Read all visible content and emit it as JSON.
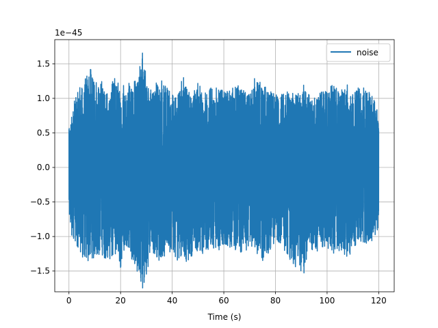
{
  "chart_data": {
    "type": "line",
    "title": "",
    "xlabel": "Time (s)",
    "ylabel": "",
    "y_offset_text": "1e−45",
    "xlim": [
      -5.5,
      126
    ],
    "ylim": [
      -1.8,
      1.85
    ],
    "x_ticks": [
      0,
      20,
      40,
      60,
      80,
      100,
      120
    ],
    "x_tick_labels": [
      "0",
      "20",
      "40",
      "60",
      "80",
      "100",
      "120"
    ],
    "y_ticks": [
      -1.5,
      -1.0,
      -0.5,
      0.0,
      0.5,
      1.0,
      1.5
    ],
    "y_tick_labels": [
      "−1.5",
      "−1.0",
      "−0.5",
      "0.0",
      "0.5",
      "1.0",
      "1.5"
    ],
    "grid": true,
    "legend_position": "top-right",
    "series": [
      {
        "name": "noise",
        "color": "#1f77b4",
        "x_range": [
          0,
          120
        ],
        "envelope_x": [
          0,
          2,
          4,
          6,
          7.5,
          10,
          12,
          15,
          18,
          20,
          22,
          24,
          27,
          28.5,
          30,
          32,
          35,
          38,
          40,
          42,
          44,
          46,
          48,
          50,
          52,
          55,
          58,
          60,
          62,
          65,
          68,
          70,
          72,
          75,
          78,
          80,
          82,
          85,
          88,
          90,
          91,
          93,
          95,
          98,
          100,
          102,
          105,
          108,
          110,
          112,
          115,
          118,
          120
        ],
        "envelope_upper": [
          0.55,
          0.95,
          1.15,
          1.2,
          1.55,
          1.2,
          1.3,
          1.05,
          1.35,
          1.1,
          1.25,
          1.2,
          1.3,
          1.8,
          1.25,
          1.1,
          1.3,
          1.15,
          1.05,
          1.0,
          1.35,
          1.1,
          1.05,
          1.25,
          1.05,
          1.15,
          1.15,
          1.1,
          1.1,
          1.2,
          1.1,
          1.05,
          1.3,
          1.2,
          1.1,
          1.05,
          1.05,
          1.1,
          1.05,
          1.1,
          1.2,
          1.05,
          1.0,
          1.1,
          1.1,
          1.2,
          1.1,
          1.2,
          1.05,
          1.15,
          1.15,
          1.0,
          0.75
        ],
        "envelope_lower": [
          -0.9,
          -1.05,
          -1.2,
          -1.35,
          -1.35,
          -1.3,
          -1.25,
          -1.35,
          -1.25,
          -1.45,
          -1.1,
          -1.3,
          -1.55,
          -1.75,
          -1.55,
          -1.2,
          -1.35,
          -1.25,
          -1.2,
          -1.35,
          -1.25,
          -1.4,
          -1.25,
          -1.2,
          -1.25,
          -1.15,
          -1.2,
          -1.1,
          -1.15,
          -1.2,
          -1.25,
          -1.1,
          -1.2,
          -1.35,
          -1.2,
          -1.05,
          -1.1,
          -1.3,
          -1.45,
          -1.5,
          -1.55,
          -1.1,
          -1.25,
          -1.15,
          -1.15,
          -1.25,
          -1.2,
          -1.3,
          -1.2,
          -1.05,
          -1.1,
          -1.05,
          -0.85
        ]
      }
    ]
  }
}
